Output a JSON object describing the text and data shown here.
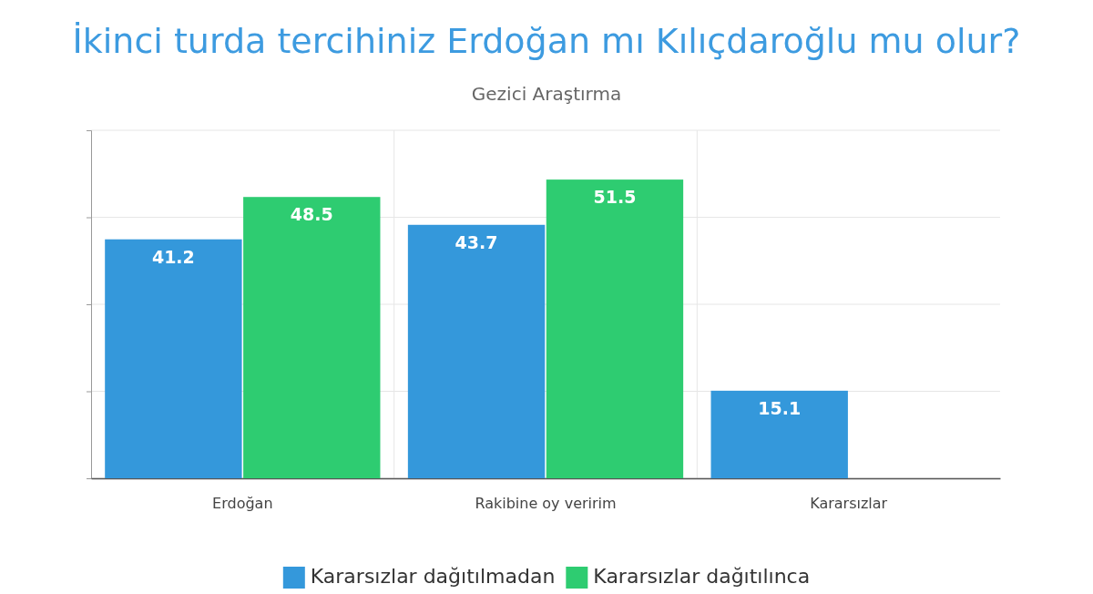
{
  "chart_data": {
    "type": "bar",
    "title": "İkinci turda tercihiniz Erdoğan mı Kılıçdaroğlu mu olur?",
    "subtitle": "Gezici Araştırma",
    "categories": [
      "Erdoğan",
      "Rakibine oy veririm",
      "Kararsızlar"
    ],
    "series": [
      {
        "name": "Kararsızlar dağıtılmadan",
        "color": "#3498db",
        "values": [
          41.2,
          43.7,
          15.1
        ]
      },
      {
        "name": "Kararsızlar dağıtılınca",
        "color": "#2ecc71",
        "values": [
          48.5,
          51.5,
          null
        ]
      }
    ],
    "ylim": [
      0,
      60
    ],
    "yticks": [
      {
        "value": 0,
        "label": null
      },
      {
        "value": 15,
        "label": null
      },
      {
        "value": 30,
        "label": null
      },
      {
        "value": 45,
        "label": null
      },
      {
        "value": 60,
        "label": null
      }
    ],
    "tick_labels": "x",
    "grid": true,
    "legend": "bottom",
    "data_labels": true
  }
}
